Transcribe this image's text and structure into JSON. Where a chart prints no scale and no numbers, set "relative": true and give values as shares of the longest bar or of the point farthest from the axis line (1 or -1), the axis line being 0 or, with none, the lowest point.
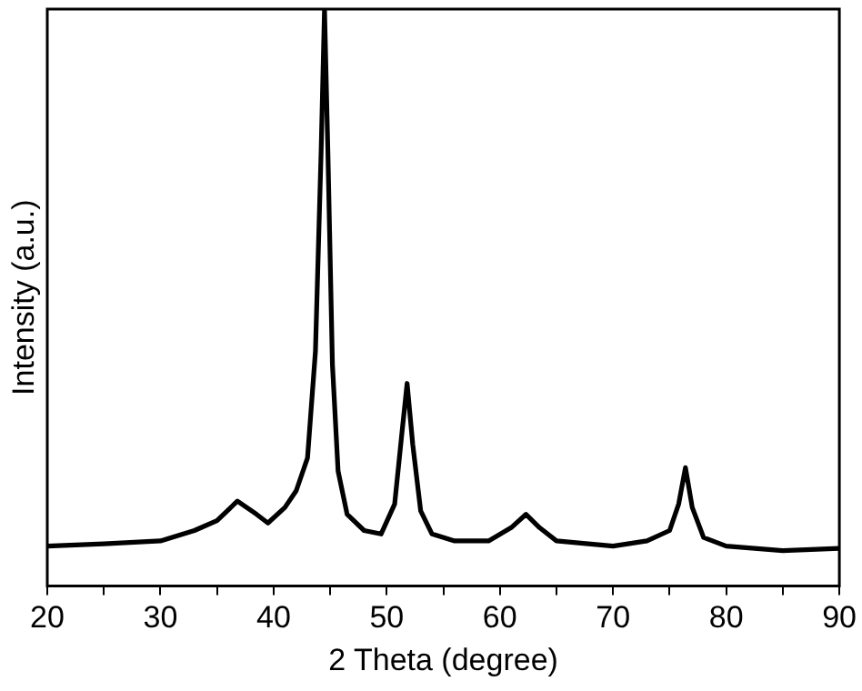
{
  "chart_data": {
    "type": "line",
    "xlabel": "2 Theta (degree)",
    "ylabel": "Intensity (a.u.)",
    "relative": true,
    "xlim": [
      20,
      90
    ],
    "xticks": [
      20,
      {
        "value": 25,
        "label": null
      },
      30,
      {
        "value": 35,
        "label": null
      },
      40,
      {
        "value": 45,
        "label": null
      },
      50,
      {
        "value": 55,
        "label": null
      },
      60,
      {
        "value": 65,
        "label": null
      },
      70,
      {
        "value": 75,
        "label": null
      },
      80,
      {
        "value": 85,
        "label": null
      },
      90
    ],
    "x": [
      20,
      25,
      30,
      33,
      35,
      36.8,
      38.5,
      39.5,
      41,
      42,
      43,
      43.7,
      44.2,
      44.5,
      44.8,
      45.2,
      45.7,
      46.5,
      48,
      49.5,
      50.7,
      51.3,
      51.8,
      52.3,
      53,
      54,
      56,
      59,
      61,
      62.3,
      63.5,
      65,
      70,
      73,
      75,
      75.8,
      76.4,
      77,
      78,
      80,
      85,
      90
    ],
    "series": [
      {
        "color": "#000000",
        "values": [
          0.069,
          0.073,
          0.078,
          0.096,
          0.113,
          0.147,
          0.124,
          0.109,
          0.136,
          0.165,
          0.222,
          0.407,
          0.752,
          1,
          0.752,
          0.384,
          0.199,
          0.124,
          0.096,
          0.09,
          0.142,
          0.257,
          0.351,
          0.245,
          0.13,
          0.09,
          0.078,
          0.078,
          0.101,
          0.124,
          0.101,
          0.078,
          0.069,
          0.078,
          0.096,
          0.142,
          0.205,
          0.136,
          0.084,
          0.069,
          0.061,
          0.065
        ]
      }
    ],
    "grid": false,
    "legend": false,
    "marker": "none",
    "line_style": "solid"
  }
}
